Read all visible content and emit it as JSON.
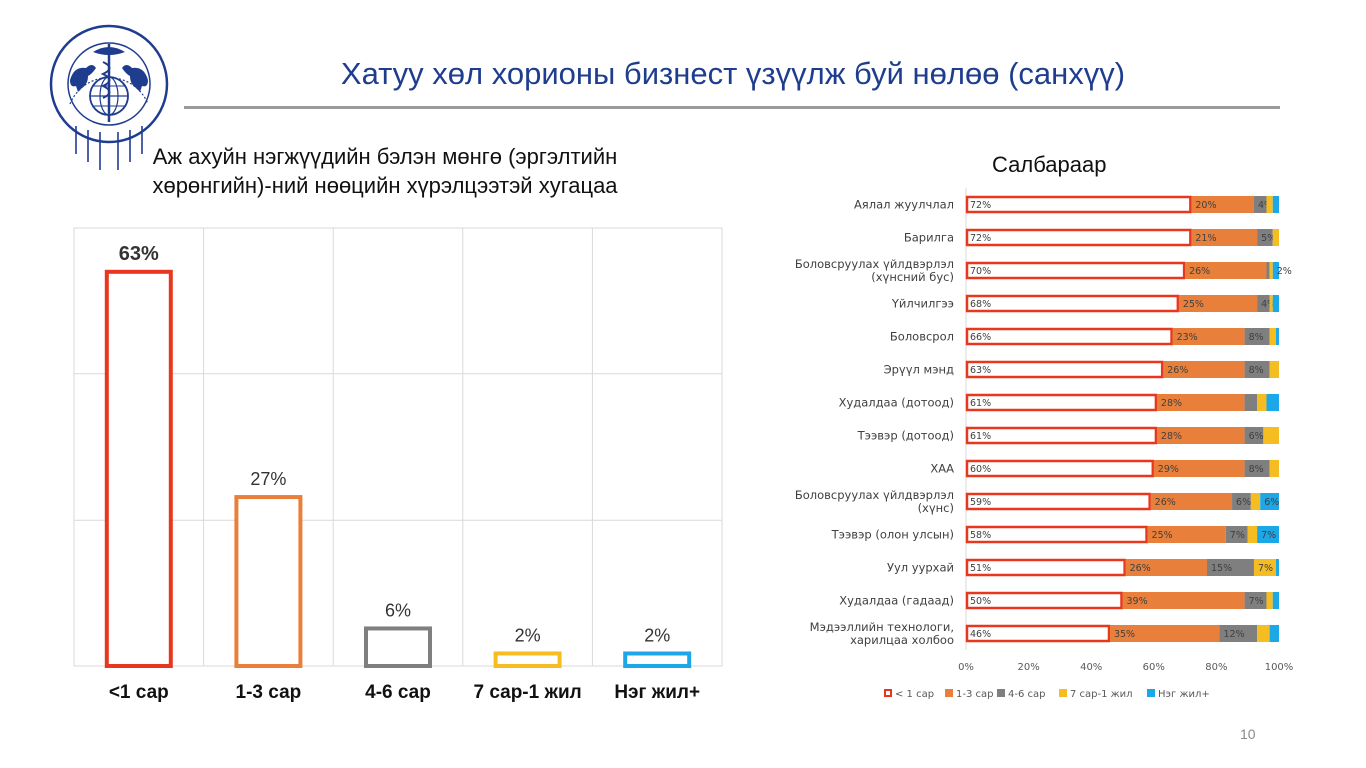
{
  "slide": {
    "title": "Хатуу хөл хорионы бизнест үзүүлж буй нөлөө (санхүү)",
    "page_number": "10"
  },
  "logo": {
    "text_top": "МОНГОЛЫН ҮНДЭСНИЙ ХУДАЛДАА АЖ ҮЙЛДВЭРИЙН ТАНХИМ"
  },
  "colors": {
    "lt1m": "#e8371f",
    "m1_3": "#e8803c",
    "m4_6": "#7f7f7f",
    "m7_12": "#f5bd21",
    "y1p": "#1ca7e8",
    "title_blue": "#1f3d8f"
  },
  "chart_data": [
    {
      "type": "bar",
      "title": "Аж ахуйн нэгжүүдийн бэлэн мөнгө (эргэлтийн хөрөнгийн)-ний нөөцийн хүрэлцээтэй хугацаа",
      "categories": [
        "<1 сар",
        "1-3 сар",
        "4-6 сар",
        "7 сар-1 жил",
        "Нэг жил+"
      ],
      "values": [
        63,
        27,
        6,
        2,
        2
      ],
      "data_labels": [
        "63%",
        "27%",
        "6%",
        "2%",
        "2%"
      ],
      "ylim": [
        0,
        70
      ],
      "grid": true
    },
    {
      "type": "bar",
      "orientation": "horizontal-stacked-100",
      "title": "Салбараар",
      "categories": [
        "Аялал жуулчлал",
        "Барилга",
        "Боловсруулах үйлдвэрлэл (хүнсний бус)",
        "Үйлчилгээ",
        "Боловсрол",
        "Эрүүл мэнд",
        "Худалдаа (дотоод)",
        "Тээвэр (дотоод)",
        "ХАА",
        "Боловсруулах үйлдвэрлэл (хүнс)",
        "Тээвэр (олон улсын)",
        "Уул уурхай",
        "Худалдаа (гадаад)",
        "Мэдээллийн технологи, харилцаа холбоо"
      ],
      "series": [
        {
          "name": "< 1 сар",
          "values": [
            72,
            72,
            70,
            68,
            66,
            63,
            61,
            61,
            60,
            59,
            58,
            51,
            50,
            46
          ]
        },
        {
          "name": "1-3 сар",
          "values": [
            20,
            21,
            26,
            25,
            23,
            26,
            28,
            28,
            29,
            26,
            25,
            26,
            39,
            35
          ]
        },
        {
          "name": "4-6 сар",
          "values": [
            4,
            5,
            1,
            4,
            8,
            8,
            4,
            6,
            8,
            6,
            7,
            15,
            7,
            12
          ]
        },
        {
          "name": "7 сар-1 жил",
          "values": [
            2,
            2,
            1,
            1,
            2,
            3,
            3,
            5,
            3,
            3,
            3,
            7,
            2,
            4
          ]
        },
        {
          "name": "Нэг жил+",
          "values": [
            2,
            0,
            2,
            2,
            1,
            0,
            4,
            0,
            0,
            6,
            7,
            1,
            2,
            3
          ]
        }
      ],
      "data_labels": {
        "< 1 сар": [
          "72%",
          "72%",
          "70%",
          "68%",
          "66%",
          "63%",
          "61%",
          "61%",
          "60%",
          "59%",
          "58%",
          "51%",
          "50%",
          "46%"
        ],
        "1-3 сар": [
          "20%",
          "21%",
          "26%",
          "25%",
          "23%",
          "26%",
          "28%",
          "28%",
          "29%",
          "26%",
          "25%",
          "26%",
          "39%",
          "35%"
        ],
        "4-6 сар": [
          "4%",
          "5%",
          "",
          "4%",
          "8%",
          "8%",
          "",
          "6%",
          "8%",
          "6%",
          "7%",
          "15%",
          "7%",
          "12%"
        ],
        "7 сар-1 жил": [
          "",
          "",
          "",
          "",
          "",
          "",
          "",
          "",
          "",
          "",
          "",
          "7%",
          "",
          ""
        ],
        "Нэг жил+": [
          "",
          "",
          "2%",
          "",
          "",
          "",
          "",
          "",
          "",
          "6%",
          "7%",
          "",
          "",
          ""
        ]
      },
      "x_ticks": [
        "0%",
        "20%",
        "40%",
        "60%",
        "80%",
        "100%"
      ],
      "xlim": [
        0,
        100
      ],
      "legend": "bottom",
      "grid": false
    }
  ]
}
